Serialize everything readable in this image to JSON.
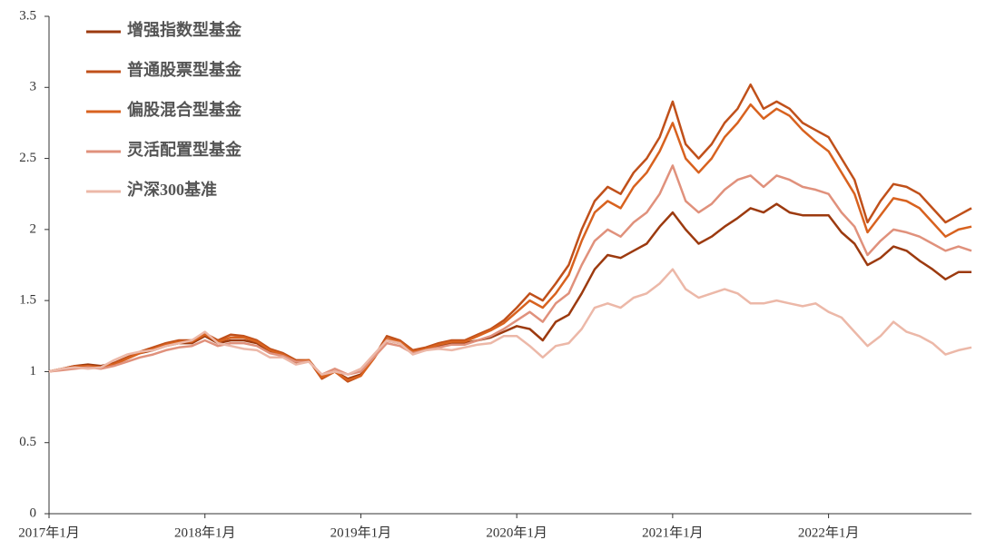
{
  "chart_data": {
    "type": "line",
    "categories": [
      "2017年1月",
      null,
      null,
      null,
      null,
      null,
      null,
      null,
      null,
      null,
      null,
      null,
      "2018年1月",
      null,
      null,
      null,
      null,
      null,
      null,
      null,
      null,
      null,
      null,
      null,
      "2019年1月",
      null,
      null,
      null,
      null,
      null,
      null,
      null,
      null,
      null,
      null,
      null,
      "2020年1月",
      null,
      null,
      null,
      null,
      null,
      null,
      null,
      null,
      null,
      null,
      null,
      "2021年1月",
      null,
      null,
      null,
      null,
      null,
      null,
      null,
      null,
      null,
      null,
      null,
      "2022年1月",
      null,
      null,
      null,
      null,
      null,
      null,
      null,
      null,
      null,
      null,
      null
    ],
    "ylim": [
      0,
      3.5
    ],
    "yticks": [
      0,
      0.5,
      1,
      1.5,
      2,
      2.5,
      3,
      3.5
    ],
    "grid": false,
    "legend": "upper-left",
    "series": [
      {
        "name": "增强指数型基金",
        "color": "#9c3a0f",
        "values": [
          1.0,
          1.02,
          1.04,
          1.05,
          1.04,
          1.06,
          1.1,
          1.13,
          1.15,
          1.18,
          1.2,
          1.2,
          1.25,
          1.2,
          1.22,
          1.22,
          1.2,
          1.14,
          1.12,
          1.06,
          1.08,
          0.97,
          1.0,
          0.95,
          0.98,
          1.1,
          1.22,
          1.2,
          1.14,
          1.16,
          1.18,
          1.2,
          1.2,
          1.22,
          1.24,
          1.28,
          1.32,
          1.3,
          1.22,
          1.35,
          1.4,
          1.55,
          1.72,
          1.82,
          1.8,
          1.85,
          1.9,
          2.02,
          2.12,
          2.0,
          1.9,
          1.95,
          2.02,
          2.08,
          2.15,
          2.12,
          2.18,
          2.12,
          2.1,
          2.1,
          2.1,
          1.98,
          1.9,
          1.75,
          1.8,
          1.88,
          1.85,
          1.78,
          1.72,
          1.65,
          1.7,
          1.7
        ]
      },
      {
        "name": "普通股票型基金",
        "color": "#c0501a",
        "values": [
          1.0,
          1.02,
          1.04,
          1.04,
          1.03,
          1.06,
          1.1,
          1.14,
          1.17,
          1.2,
          1.22,
          1.22,
          1.27,
          1.22,
          1.26,
          1.25,
          1.22,
          1.16,
          1.13,
          1.08,
          1.08,
          0.95,
          1.0,
          0.93,
          0.97,
          1.1,
          1.25,
          1.22,
          1.15,
          1.17,
          1.2,
          1.22,
          1.22,
          1.26,
          1.3,
          1.36,
          1.45,
          1.55,
          1.5,
          1.62,
          1.75,
          2.0,
          2.2,
          2.3,
          2.25,
          2.4,
          2.5,
          2.65,
          2.9,
          2.6,
          2.5,
          2.6,
          2.75,
          2.85,
          3.02,
          2.85,
          2.9,
          2.85,
          2.75,
          2.7,
          2.65,
          2.5,
          2.35,
          2.05,
          2.2,
          2.32,
          2.3,
          2.25,
          2.15,
          2.05,
          2.1,
          2.15
        ]
      },
      {
        "name": "偏股混合型基金",
        "color": "#d8621f",
        "values": [
          1.0,
          1.02,
          1.03,
          1.04,
          1.03,
          1.05,
          1.09,
          1.13,
          1.16,
          1.19,
          1.21,
          1.21,
          1.26,
          1.21,
          1.24,
          1.24,
          1.21,
          1.15,
          1.12,
          1.07,
          1.08,
          0.96,
          1.0,
          0.94,
          0.97,
          1.09,
          1.23,
          1.21,
          1.14,
          1.16,
          1.19,
          1.21,
          1.21,
          1.25,
          1.29,
          1.34,
          1.42,
          1.5,
          1.45,
          1.55,
          1.68,
          1.92,
          2.12,
          2.2,
          2.15,
          2.3,
          2.4,
          2.55,
          2.75,
          2.5,
          2.4,
          2.5,
          2.65,
          2.75,
          2.88,
          2.78,
          2.85,
          2.8,
          2.7,
          2.62,
          2.55,
          2.4,
          2.25,
          1.98,
          2.1,
          2.22,
          2.2,
          2.15,
          2.05,
          1.95,
          2.0,
          2.02
        ]
      },
      {
        "name": "灵活配置型基金",
        "color": "#e0917c",
        "values": [
          1.0,
          1.01,
          1.02,
          1.03,
          1.02,
          1.04,
          1.07,
          1.1,
          1.12,
          1.15,
          1.17,
          1.18,
          1.22,
          1.18,
          1.2,
          1.2,
          1.18,
          1.13,
          1.11,
          1.07,
          1.07,
          0.98,
          1.02,
          0.98,
          1.0,
          1.1,
          1.2,
          1.18,
          1.13,
          1.15,
          1.17,
          1.19,
          1.19,
          1.22,
          1.25,
          1.3,
          1.36,
          1.42,
          1.35,
          1.48,
          1.55,
          1.75,
          1.92,
          2.0,
          1.95,
          2.05,
          2.12,
          2.25,
          2.45,
          2.2,
          2.12,
          2.18,
          2.28,
          2.35,
          2.38,
          2.3,
          2.38,
          2.35,
          2.3,
          2.28,
          2.25,
          2.12,
          2.02,
          1.82,
          1.92,
          2.0,
          1.98,
          1.95,
          1.9,
          1.85,
          1.88,
          1.85
        ]
      },
      {
        "name": "沪深300基准",
        "color": "#ecb8a8",
        "values": [
          1.0,
          1.02,
          1.03,
          1.02,
          1.03,
          1.08,
          1.12,
          1.14,
          1.15,
          1.18,
          1.2,
          1.22,
          1.28,
          1.2,
          1.18,
          1.16,
          1.15,
          1.1,
          1.1,
          1.05,
          1.07,
          0.98,
          1.0,
          0.98,
          1.02,
          1.12,
          1.22,
          1.2,
          1.12,
          1.15,
          1.16,
          1.15,
          1.17,
          1.19,
          1.2,
          1.25,
          1.25,
          1.18,
          1.1,
          1.18,
          1.2,
          1.3,
          1.45,
          1.48,
          1.45,
          1.52,
          1.55,
          1.62,
          1.72,
          1.58,
          1.52,
          1.55,
          1.58,
          1.55,
          1.48,
          1.48,
          1.5,
          1.48,
          1.46,
          1.48,
          1.42,
          1.38,
          1.28,
          1.18,
          1.25,
          1.35,
          1.28,
          1.25,
          1.2,
          1.12,
          1.15,
          1.17
        ]
      }
    ]
  }
}
